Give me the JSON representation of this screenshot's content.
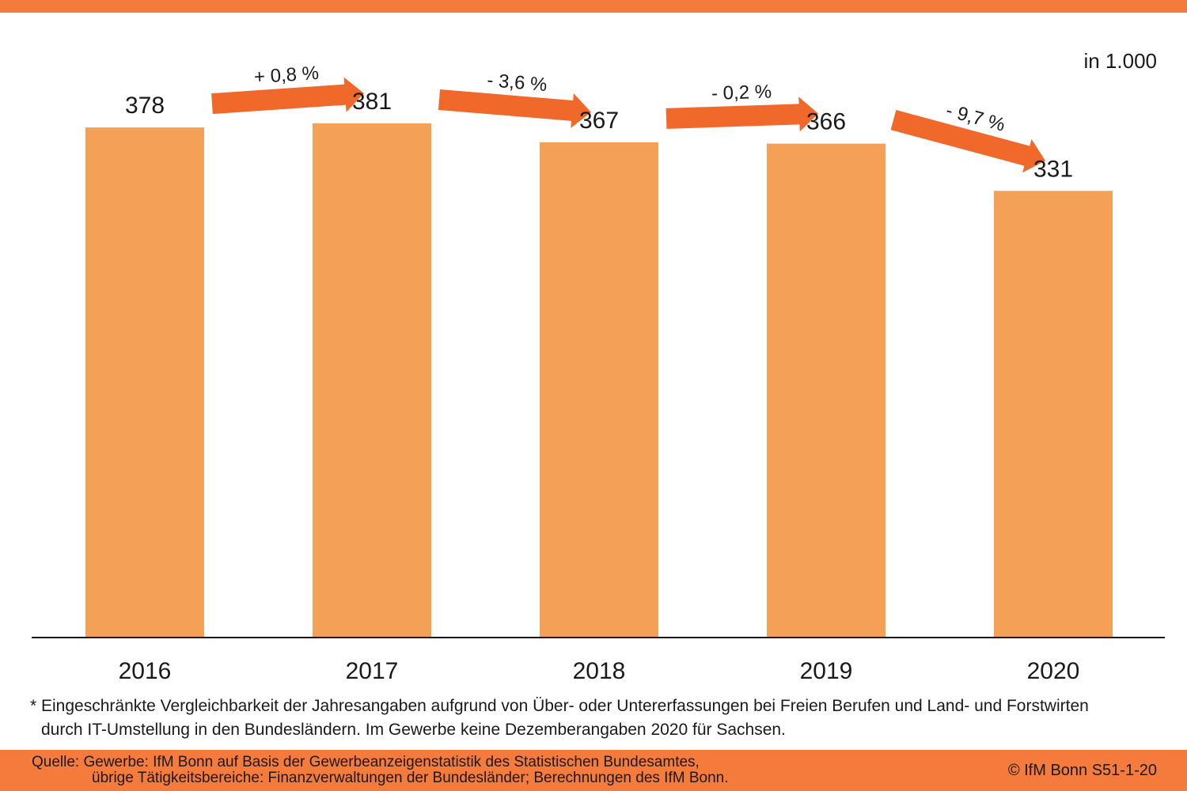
{
  "chart_data": {
    "type": "bar",
    "categories": [
      "2016",
      "2017",
      "2018",
      "2019",
      "2020"
    ],
    "values": [
      378,
      381,
      367,
      366,
      331
    ],
    "value_labels": [
      "378",
      "381",
      "367",
      "366",
      "331"
    ],
    "unit_label": "in 1.000",
    "changes": [
      "+ 0,8 %",
      "- 3,6 %",
      "- 0,2 %",
      "- 9,7 %"
    ],
    "bar_color": "#F4A056",
    "arrow_color": "#F0692B",
    "ylim": [
      0,
      381
    ],
    "grid": false,
    "legend": "none"
  },
  "footnote": {
    "line1": "* Eingeschränkte Vergleichbarkeit der Jahresangaben aufgrund von Über- oder Untererfassungen bei Freien Berufen und Land- und Forstwirten",
    "line2": "durch IT-Umstellung in den Bundesländern. Im Gewerbe keine Dezemberangaben 2020 für Sachsen."
  },
  "source": {
    "line1": "Quelle: Gewerbe: IfM Bonn auf Basis der Gewerbeanzeigenstatistik des Statistischen Bundesamtes,",
    "line2": "übrige Tätigkeitsbereiche: Finanzverwaltungen der Bundesländer; Berechnungen des IfM Bonn.",
    "copyright": "© IfM Bonn  S51-1-20"
  },
  "colors": {
    "accent": "#F47B3C"
  }
}
